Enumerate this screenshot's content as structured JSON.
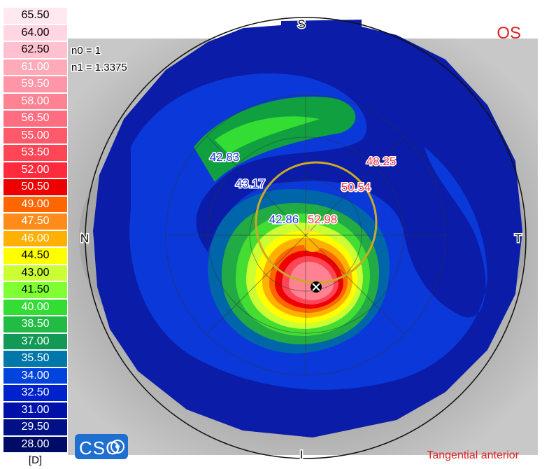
{
  "scale": {
    "items": [
      {
        "value": "65.50",
        "color": "#ffe8ef",
        "text": "#000000"
      },
      {
        "value": "64.00",
        "color": "#ffd6e2",
        "text": "#000000"
      },
      {
        "value": "62.50",
        "color": "#ffc0d0",
        "text": "#000000"
      },
      {
        "value": "61.00",
        "color": "#ffaab9",
        "text": "#ffffff"
      },
      {
        "value": "59.50",
        "color": "#ff95a6",
        "text": "#ffffff"
      },
      {
        "value": "58.00",
        "color": "#ff8293",
        "text": "#ffffff"
      },
      {
        "value": "56.50",
        "color": "#ff6e80",
        "text": "#ffffff"
      },
      {
        "value": "55.00",
        "color": "#ff5a6c",
        "text": "#ffffff"
      },
      {
        "value": "53.50",
        "color": "#ff4657",
        "text": "#ffffff"
      },
      {
        "value": "52.00",
        "color": "#ff2b3d",
        "text": "#ffffff"
      },
      {
        "value": "50.50",
        "color": "#ee0000",
        "text": "#ffffff"
      },
      {
        "value": "49.00",
        "color": "#ff6600",
        "text": "#ffffff"
      },
      {
        "value": "47.50",
        "color": "#ff8c1a",
        "text": "#ffffff"
      },
      {
        "value": "46.00",
        "color": "#ffb000",
        "text": "#ffffff"
      },
      {
        "value": "44.50",
        "color": "#ffff00",
        "text": "#000000"
      },
      {
        "value": "43.00",
        "color": "#ccff33",
        "text": "#000000"
      },
      {
        "value": "41.50",
        "color": "#80ff33",
        "text": "#000000"
      },
      {
        "value": "40.00",
        "color": "#33dd33",
        "text": "#ffffff"
      },
      {
        "value": "38.50",
        "color": "#22bb44",
        "text": "#ffffff"
      },
      {
        "value": "37.00",
        "color": "#119955",
        "text": "#ffffff"
      },
      {
        "value": "35.50",
        "color": "#0077aa",
        "text": "#ffffff"
      },
      {
        "value": "34.00",
        "color": "#0044dd",
        "text": "#ffffff"
      },
      {
        "value": "32.50",
        "color": "#0022cc",
        "text": "#ffffff"
      },
      {
        "value": "31.00",
        "color": "#0011aa",
        "text": "#ffffff"
      },
      {
        "value": "29.50",
        "color": "#001188",
        "text": "#ffffff"
      },
      {
        "value": "28.00",
        "color": "#000b66",
        "text": "#ffffff"
      }
    ],
    "unit": "[D]"
  },
  "map": {
    "n0": "n0 = 1",
    "n1": "n1 = 1.3375",
    "eye": "OS",
    "map_type": "Tangential anterior",
    "logo": "CSO",
    "orientation": {
      "top": "S",
      "bottom": "I",
      "left": "N",
      "right": "T"
    },
    "values": {
      "v1": "42.83",
      "v2": "48.25",
      "v3": "43.17",
      "v4": "50.54",
      "v5": "42.86",
      "v6": "52.98"
    },
    "colors": {
      "eye_label": "#dd2222",
      "value_blue": "#2233dd",
      "value_red": "#ff3344",
      "pupil_ring": "#ccaa22"
    }
  }
}
